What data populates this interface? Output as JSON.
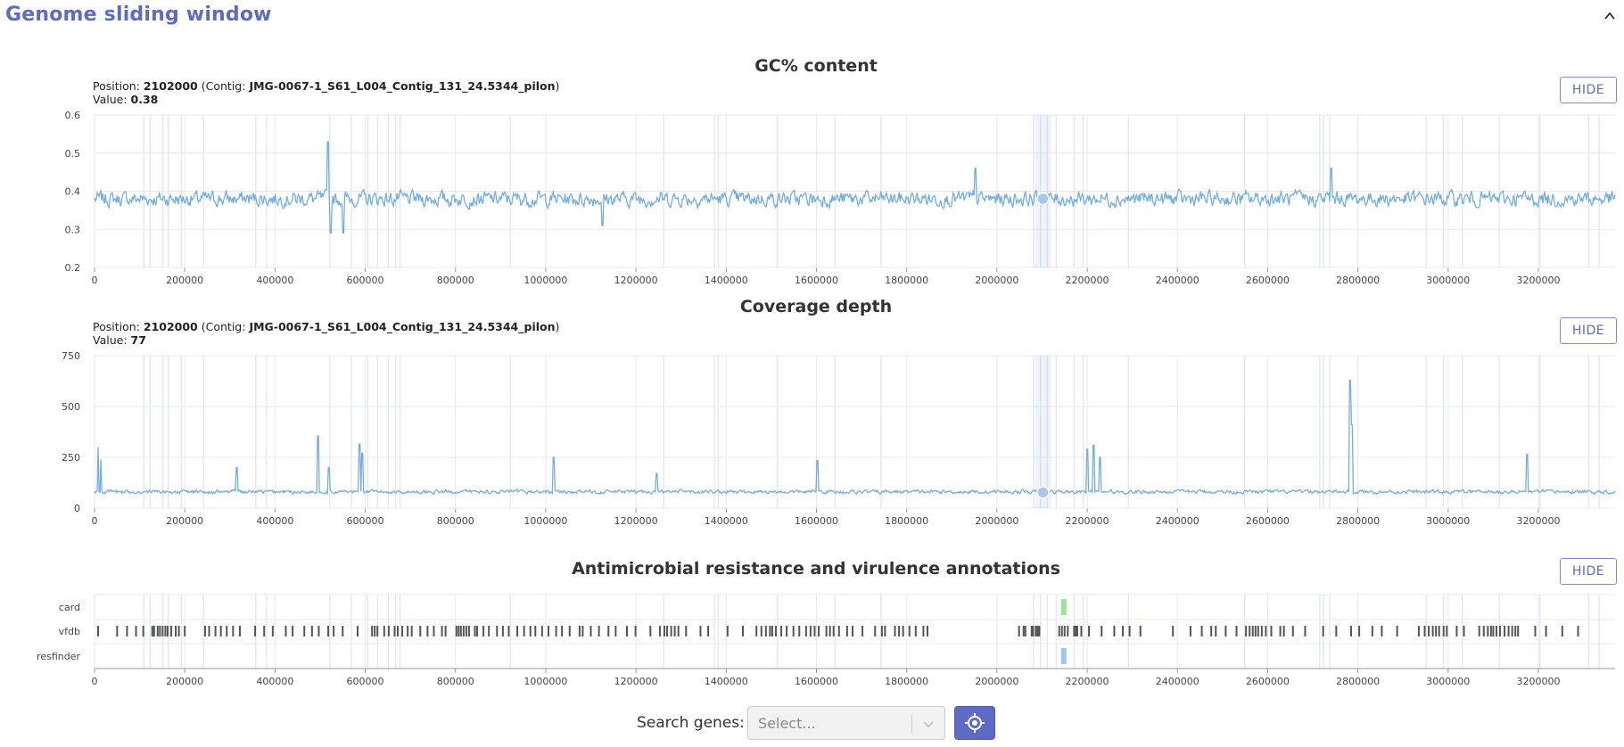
{
  "header": {
    "title": "Genome sliding window"
  },
  "gc_panel": {
    "title": "GC% content",
    "position_label": "Position:",
    "position": "2102000",
    "contig_prefix": "(Contig:",
    "contig": "JMG-0067-1_S61_L004_Contig_131_24.5344_pilon",
    "contig_suffix": ")",
    "value_label": "Value:",
    "value": "0.38",
    "hide_label": "HIDE"
  },
  "coverage_panel": {
    "title": "Coverage depth",
    "position_label": "Position:",
    "position": "2102000",
    "contig_prefix": "(Contig:",
    "contig": "JMG-0067-1_S61_L004_Contig_131_24.5344_pilon",
    "contig_suffix": ")",
    "value_label": "Value:",
    "value": "77",
    "hide_label": "HIDE"
  },
  "annotation_panel": {
    "title": "Antimicrobial resistance and virulence annotations",
    "hide_label": "HIDE"
  },
  "search": {
    "label": "Search genes:",
    "placeholder": "Select..."
  },
  "colors": {
    "accent": "#5d6bc4",
    "series": "#74ade2",
    "card": "#9ee39b",
    "vfdb": "#555555",
    "resfinder": "#9fc8f0"
  },
  "icons": {
    "collapse": "chevron-up-icon",
    "dropdown": "chevron-down-icon",
    "locate": "crosshair-icon"
  },
  "chart_data": [
    {
      "type": "line",
      "title": "GC% content",
      "xlim": [
        0,
        3370000
      ],
      "ylim": [
        0.2,
        0.6
      ],
      "x_ticks": [
        0,
        200000,
        400000,
        600000,
        800000,
        1000000,
        1200000,
        1400000,
        1600000,
        1800000,
        2000000,
        2200000,
        2400000,
        2600000,
        2800000,
        3000000,
        3200000
      ],
      "y_ticks": [
        0.2,
        0.3,
        0.4,
        0.5,
        0.6
      ],
      "grid": true,
      "baseline": 0.38,
      "noise": 0.03,
      "spikes": [
        [
          518000,
          0.53
        ],
        [
          523000,
          0.29
        ],
        [
          551000,
          0.29
        ],
        [
          1125000,
          0.31
        ],
        [
          1952000,
          0.46
        ],
        [
          2740000,
          0.46
        ]
      ],
      "highlight": {
        "x": 2102000,
        "y": 0.38
      }
    },
    {
      "type": "line",
      "title": "Coverage depth",
      "xlim": [
        0,
        3370000
      ],
      "ylim": [
        0,
        750
      ],
      "x_ticks": [
        0,
        200000,
        400000,
        600000,
        800000,
        1000000,
        1200000,
        1400000,
        1600000,
        1800000,
        2000000,
        2200000,
        2400000,
        2600000,
        2800000,
        3000000,
        3200000
      ],
      "y_ticks": [
        0,
        250,
        500,
        750
      ],
      "grid": true,
      "baseline": 80,
      "noise": 14,
      "spikes": [
        [
          8000,
          300
        ],
        [
          14000,
          240
        ],
        [
          315000,
          200
        ],
        [
          495000,
          355
        ],
        [
          520000,
          200
        ],
        [
          588000,
          315
        ],
        [
          593000,
          270
        ],
        [
          1018000,
          250
        ],
        [
          1245000,
          170
        ],
        [
          1602000,
          235
        ],
        [
          2200000,
          290
        ],
        [
          2215000,
          310
        ],
        [
          2228000,
          250
        ],
        [
          2782000,
          630
        ],
        [
          2787000,
          410
        ],
        [
          3175000,
          265
        ]
      ],
      "highlight": {
        "x": 2102000,
        "y": 77
      }
    },
    {
      "type": "tracks",
      "title": "Antimicrobial resistance and virulence annotations",
      "xlim": [
        0,
        3370000
      ],
      "x_ticks": [
        0,
        200000,
        400000,
        600000,
        800000,
        1000000,
        1200000,
        1400000,
        1600000,
        1800000,
        2000000,
        2200000,
        2400000,
        2600000,
        2800000,
        3000000,
        3200000
      ],
      "tracks": [
        {
          "name": "card",
          "features": [
            2148000
          ]
        },
        {
          "name": "vfdb",
          "features": [
            8000,
            50000,
            72000,
            92000,
            108000,
            128000,
            132000,
            140000,
            145000,
            151000,
            157000,
            162000,
            170000,
            180000,
            187000,
            200000,
            245000,
            254000,
            268000,
            280000,
            293000,
            307000,
            322000,
            356000,
            376000,
            395000,
            424000,
            439000,
            465000,
            482000,
            497000,
            518000,
            530000,
            550000,
            583000,
            615000,
            621000,
            627000,
            642000,
            652000,
            665000,
            672000,
            682000,
            694000,
            703000,
            722000,
            738000,
            752000,
            770000,
            778000,
            802000,
            807000,
            812000,
            818000,
            824000,
            830000,
            843000,
            848000,
            862000,
            874000,
            892000,
            905000,
            918000,
            937000,
            952000,
            966000,
            977000,
            992000,
            1006000,
            1023000,
            1036000,
            1053000,
            1075000,
            1082000,
            1100000,
            1118000,
            1139000,
            1155000,
            1180000,
            1199000,
            1232000,
            1253000,
            1263000,
            1269000,
            1278000,
            1286000,
            1294000,
            1311000,
            1343000,
            1360000,
            1403000,
            1437000,
            1467000,
            1478000,
            1488000,
            1497000,
            1502000,
            1510000,
            1522000,
            1534000,
            1549000,
            1562000,
            1577000,
            1587000,
            1596000,
            1605000,
            1622000,
            1630000,
            1638000,
            1650000,
            1668000,
            1680000,
            1702000,
            1730000,
            1745000,
            1752000,
            1774000,
            1783000,
            1792000,
            1806000,
            1820000,
            1837000,
            1846000,
            2049000,
            2059000,
            2063000,
            2077000,
            2080000,
            2086000,
            2090000,
            2092000,
            2094000,
            2138000,
            2144000,
            2150000,
            2157000,
            2171000,
            2175000,
            2178000,
            2187000,
            2204000,
            2232000,
            2260000,
            2279000,
            2294000,
            2318000,
            2390000,
            2429000,
            2454000,
            2475000,
            2485000,
            2507000,
            2531000,
            2552000,
            2560000,
            2567000,
            2573000,
            2579000,
            2587000,
            2596000,
            2608000,
            2628000,
            2636000,
            2656000,
            2683000,
            2723000,
            2752000,
            2785000,
            2803000,
            2832000,
            2853000,
            2887000,
            2935000,
            2948000,
            2957000,
            2966000,
            2973000,
            2980000,
            2990000,
            2997000,
            3019000,
            3035000,
            3069000,
            3079000,
            3088000,
            3095000,
            3100000,
            3107000,
            3115000,
            3125000,
            3134000,
            3142000,
            3149000,
            3155000,
            3193000,
            3217000,
            3253000,
            3288000
          ]
        },
        {
          "name": "resfinder",
          "features": [
            2148000
          ]
        }
      ]
    }
  ]
}
